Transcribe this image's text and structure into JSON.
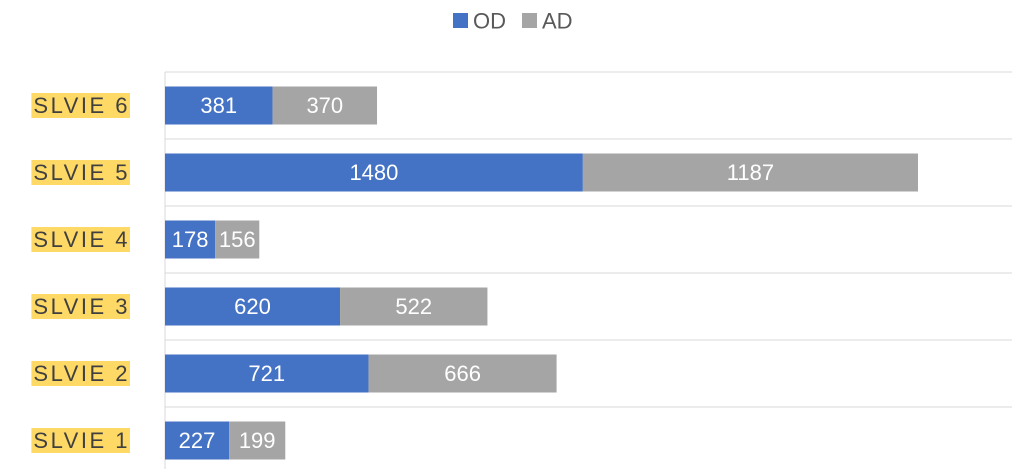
{
  "chart_data": {
    "type": "stacked-bar-horizontal",
    "categories": [
      "SLVIE 6",
      "SLVIE 5",
      "SLVIE 4",
      "SLVIE 3",
      "SLVIE 2",
      "SLVIE 1"
    ],
    "series": [
      {
        "name": "OD",
        "color": "#4472c4",
        "values": [
          381,
          1480,
          178,
          620,
          721,
          227
        ]
      },
      {
        "name": "AD",
        "color": "#a5a5a5",
        "values": [
          370,
          1187,
          156,
          522,
          666,
          199
        ]
      }
    ],
    "xlim": [
      0,
      3000
    ],
    "category_label_highlight": "#ffd966",
    "legend": "top"
  }
}
